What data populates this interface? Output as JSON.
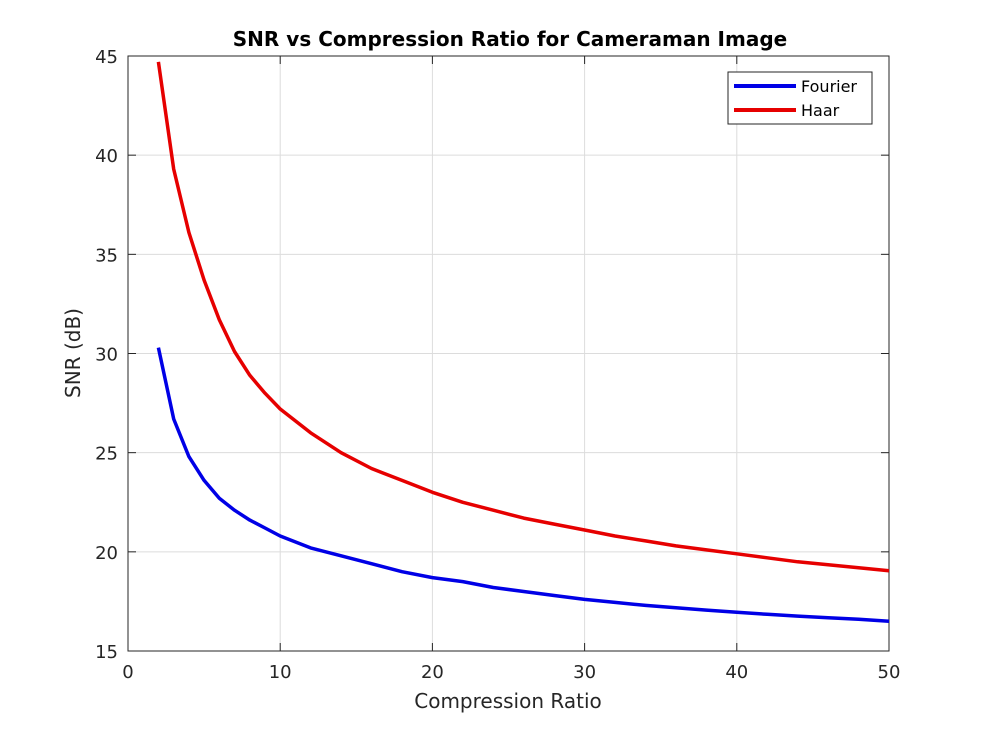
{
  "chart_data": {
    "type": "line",
    "title": "SNR vs Compression Ratio for Cameraman Image",
    "xlabel": "Compression Ratio",
    "ylabel": "SNR (dB)",
    "xlim": [
      0,
      50
    ],
    "ylim": [
      15,
      45
    ],
    "xticks": [
      0,
      10,
      20,
      30,
      40,
      50
    ],
    "yticks": [
      15,
      20,
      25,
      30,
      35,
      40,
      45
    ],
    "xtick_labels": [
      "0",
      "10",
      "20",
      "30",
      "40",
      "50"
    ],
    "ytick_labels": [
      "15",
      "20",
      "25",
      "30",
      "35",
      "40",
      "45"
    ],
    "grid": true,
    "legend_position": "top-right",
    "x": [
      2,
      3,
      4,
      5,
      6,
      7,
      8,
      9,
      10,
      12,
      14,
      16,
      18,
      20,
      22,
      24,
      26,
      28,
      30,
      32,
      34,
      36,
      38,
      40,
      42,
      44,
      46,
      48,
      50
    ],
    "series": [
      {
        "name": "Fourier",
        "color": "#0000e6",
        "values": [
          30.3,
          26.7,
          24.8,
          23.6,
          22.7,
          22.1,
          21.6,
          21.2,
          20.8,
          20.2,
          19.8,
          19.4,
          19.0,
          18.7,
          18.5,
          18.2,
          18.0,
          17.8,
          17.6,
          17.45,
          17.3,
          17.18,
          17.06,
          16.95,
          16.85,
          16.76,
          16.68,
          16.6,
          16.5
        ]
      },
      {
        "name": "Haar",
        "color": "#e60000",
        "values": [
          44.7,
          39.3,
          36.1,
          33.7,
          31.7,
          30.1,
          28.9,
          28.0,
          27.2,
          26.0,
          25.0,
          24.2,
          23.6,
          23.0,
          22.5,
          22.1,
          21.7,
          21.4,
          21.1,
          20.8,
          20.55,
          20.3,
          20.1,
          19.9,
          19.7,
          19.5,
          19.35,
          19.2,
          19.05
        ]
      }
    ]
  }
}
